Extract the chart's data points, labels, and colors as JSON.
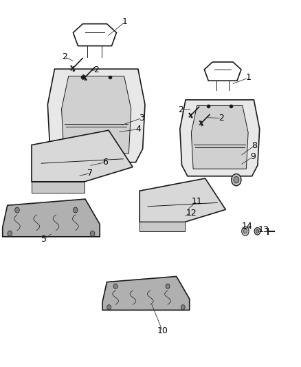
{
  "title": "",
  "bg_color": "#ffffff",
  "line_color": "#1a1a1a",
  "label_color": "#000000",
  "label_fontsize": 9,
  "line_fontsize": 8,
  "labels": {
    "1a": [
      0.415,
      0.935,
      "1"
    ],
    "2a_left": [
      0.245,
      0.845,
      "2"
    ],
    "2a_right": [
      0.305,
      0.825,
      "2"
    ],
    "3": [
      0.465,
      0.685,
      "3"
    ],
    "4": [
      0.455,
      0.65,
      "4"
    ],
    "5": [
      0.155,
      0.355,
      "5"
    ],
    "6": [
      0.34,
      0.565,
      "6"
    ],
    "7": [
      0.305,
      0.535,
      "7"
    ],
    "1b": [
      0.82,
      0.785,
      "1"
    ],
    "2b_left": [
      0.635,
      0.695,
      "2"
    ],
    "2b_right": [
      0.745,
      0.678,
      "2"
    ],
    "8": [
      0.84,
      0.6,
      "8"
    ],
    "9": [
      0.835,
      0.578,
      "9"
    ],
    "10": [
      0.545,
      0.095,
      "10"
    ],
    "11": [
      0.645,
      0.45,
      "11"
    ],
    "12": [
      0.63,
      0.425,
      "12"
    ],
    "13": [
      0.875,
      0.385,
      "13"
    ],
    "14": [
      0.825,
      0.393,
      "14"
    ]
  },
  "figsize": [
    4.38,
    5.33
  ],
  "dpi": 100
}
